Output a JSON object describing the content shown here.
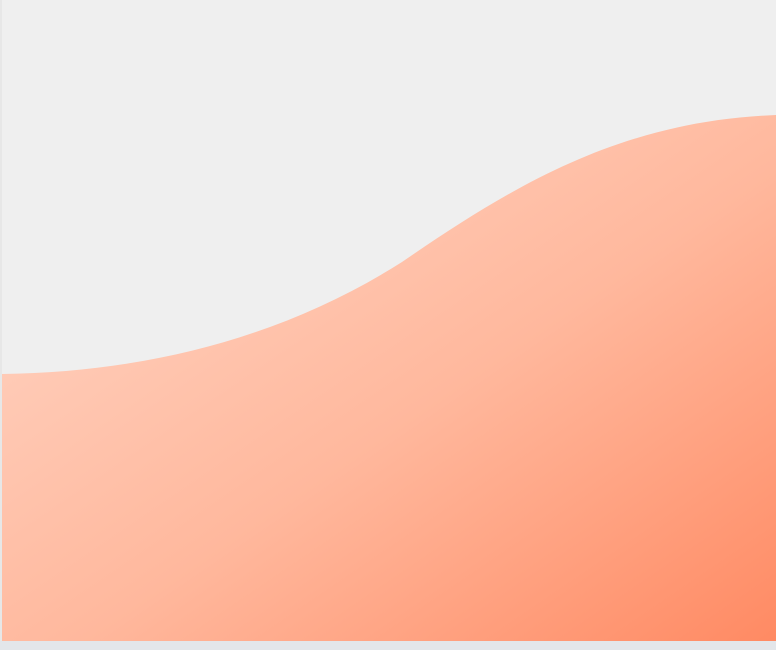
{
  "page": {
    "background": "#efefef",
    "frame_background": "#e3e6ea"
  },
  "wave": {
    "gradient_start": "#ffd9ca",
    "gradient_mid": "#ffb89d",
    "gradient_end": "#ff8a63"
  }
}
